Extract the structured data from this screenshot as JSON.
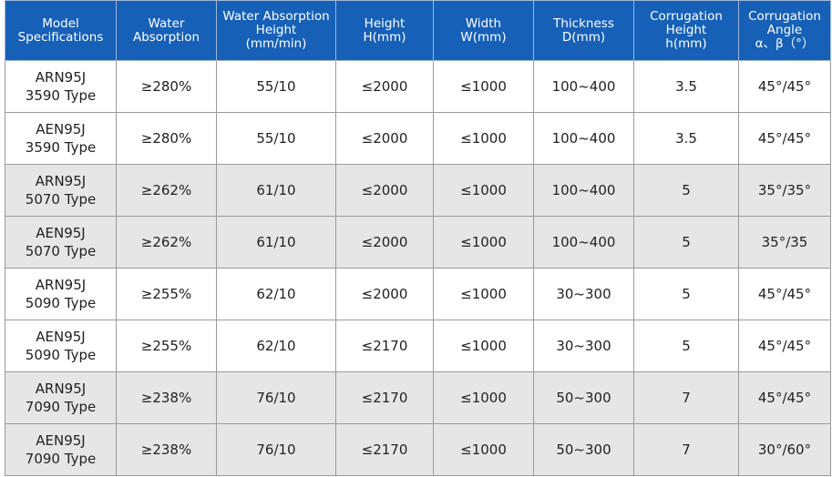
{
  "table": {
    "header": [
      "Model\nSpecifications",
      "Water\nAbsorption",
      "Water Absorption\nHeight\n(mm/min)",
      "Height\nH(mm)",
      "Width\nW(mm)",
      "Thickness\nD(mm)",
      "Corrugation\nHeight\nh(mm)",
      "Corrugation\nAngle\nα、β（°）"
    ],
    "rows": [
      [
        "ARN95J\n3590 Type",
        "≥280%",
        "55/10",
        "≤2000",
        "≤1000",
        "100~400",
        "3.5",
        "45°/45°"
      ],
      [
        "AEN95J\n3590 Type",
        "≥280%",
        "55/10",
        "≤2000",
        "≤1000",
        "100~400",
        "3.5",
        "45°/45°"
      ],
      [
        "ARN95J\n5070 Type",
        "≥262%",
        "61/10",
        "≤2000",
        "≤1000",
        "100~400",
        "5",
        "35°/35°"
      ],
      [
        "AEN95J\n5070 Type",
        "≥262%",
        "61/10",
        "≤2000",
        "≤1000",
        "100~400",
        "5",
        "35°/35"
      ],
      [
        "ARN95J\n5090 Type",
        "≥255%",
        "62/10",
        "≤2000",
        "≤1000",
        "30~300",
        "5",
        "45°/45°"
      ],
      [
        "AEN95J\n5090 Type",
        "≥255%",
        "62/10",
        "≤2170",
        "≤1000",
        "30~300",
        "5",
        "45°/45°"
      ],
      [
        "ARN95J\n7090 Type",
        "≥238%",
        "76/10",
        "≤2170",
        "≤1000",
        "50~300",
        "7",
        "45°/45°"
      ],
      [
        "AEN95J\n7090 Type",
        "≥238%",
        "76/10",
        "≤2170",
        "≤1000",
        "50~300",
        "7",
        "30°/60°"
      ]
    ]
  }
}
